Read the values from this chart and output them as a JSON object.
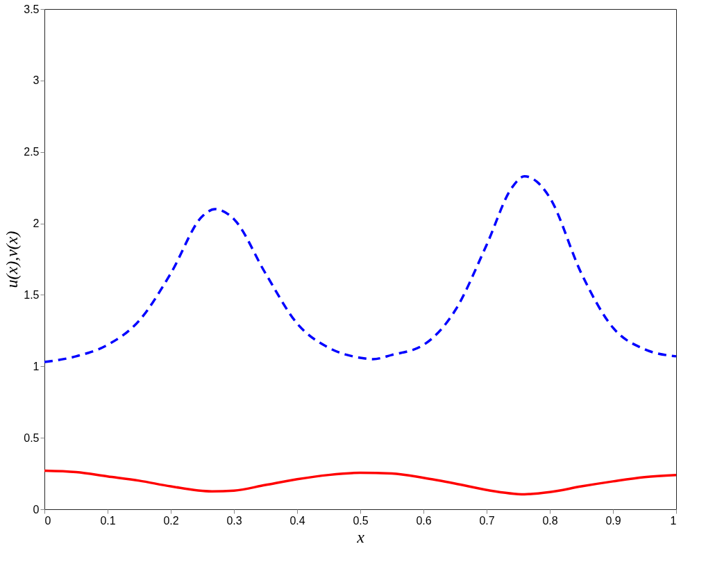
{
  "chart_data": {
    "type": "line",
    "xlabel": "x",
    "ylabel": "u(x),v(x)",
    "xlim": [
      0,
      1
    ],
    "xticks": [
      0,
      0.1,
      0.2,
      0.3,
      0.4,
      0.5,
      0.6,
      0.7,
      0.8,
      0.9,
      1
    ],
    "ylim": [
      0,
      3.5
    ],
    "yticks": [
      0,
      0.5,
      1,
      1.5,
      2,
      2.5,
      3,
      3.5
    ],
    "grid": false,
    "series": [
      {
        "color": "#0000ff",
        "line_style": "dashed",
        "x": [
          0,
          0.05,
          0.1,
          0.15,
          0.2,
          0.25,
          0.27,
          0.3,
          0.35,
          0.4,
          0.45,
          0.5,
          0.52,
          0.55,
          0.6,
          0.65,
          0.7,
          0.74,
          0.76,
          0.78,
          0.8,
          0.85,
          0.9,
          0.95,
          1
        ],
        "values": [
          1.03,
          1.07,
          1.15,
          1.32,
          1.65,
          2.05,
          2.1,
          2.03,
          1.65,
          1.3,
          1.13,
          1.06,
          1.05,
          1.08,
          1.15,
          1.39,
          1.85,
          2.25,
          2.33,
          2.29,
          2.18,
          1.65,
          1.27,
          1.12,
          1.07
        ]
      },
      {
        "color": "#ff0000",
        "line_style": "solid",
        "x": [
          0,
          0.05,
          0.1,
          0.15,
          0.2,
          0.265,
          0.3,
          0.35,
          0.4,
          0.45,
          0.5,
          0.55,
          0.6,
          0.65,
          0.7,
          0.76,
          0.8,
          0.85,
          0.9,
          0.95,
          1
        ],
        "values": [
          0.27,
          0.26,
          0.23,
          0.2,
          0.16,
          0.125,
          0.13,
          0.17,
          0.21,
          0.24,
          0.255,
          0.25,
          0.22,
          0.18,
          0.135,
          0.105,
          0.12,
          0.16,
          0.195,
          0.225,
          0.24
        ]
      }
    ]
  }
}
